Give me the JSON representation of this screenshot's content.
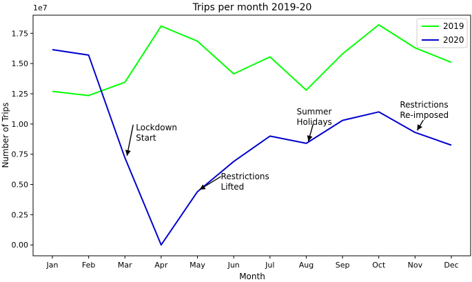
{
  "chart_data": {
    "type": "line",
    "title": "Trips per month 2019-20",
    "xlabel": "Month",
    "ylabel": "Number of Trips",
    "y_multiplier_label": "1e7",
    "categories": [
      "Jan",
      "Feb",
      "Mar",
      "Apr",
      "May",
      "Jun",
      "Jul",
      "Aug",
      "Sep",
      "Oct",
      "Nov",
      "Dec"
    ],
    "series": [
      {
        "name": "2019",
        "color": "#00ff00",
        "values": [
          1.27,
          1.235,
          1.345,
          1.81,
          1.685,
          1.415,
          1.555,
          1.28,
          1.58,
          1.82,
          1.63,
          1.51
        ]
      },
      {
        "name": "2020",
        "color": "#0000cc",
        "values": [
          1.615,
          1.57,
          0.72,
          0.0,
          0.44,
          0.69,
          0.9,
          0.84,
          1.03,
          1.1,
          0.93,
          0.825
        ]
      }
    ],
    "ylim": [
      -0.09,
      1.9
    ],
    "yticks": [
      0.0,
      0.25,
      0.5,
      0.75,
      1.0,
      1.25,
      1.5,
      1.75
    ],
    "ytick_labels": [
      "0.00",
      "0.25",
      "0.50",
      "0.75",
      "1.00",
      "1.25",
      "1.50",
      "1.75"
    ],
    "legend_position": "top-right",
    "grid": false,
    "annotations": [
      {
        "lines": [
          "Lockdown",
          "Start"
        ],
        "target_index": 2,
        "target_value": 0.72
      },
      {
        "lines": [
          "Restrictions",
          "Lifted"
        ],
        "target_index": 4,
        "target_value": 0.44
      },
      {
        "lines": [
          "Summer",
          "Holidays"
        ],
        "target_index": 7,
        "target_value": 0.84
      },
      {
        "lines": [
          "Restrictions",
          "Re-imposed"
        ],
        "target_index": 10,
        "target_value": 0.93
      }
    ]
  }
}
